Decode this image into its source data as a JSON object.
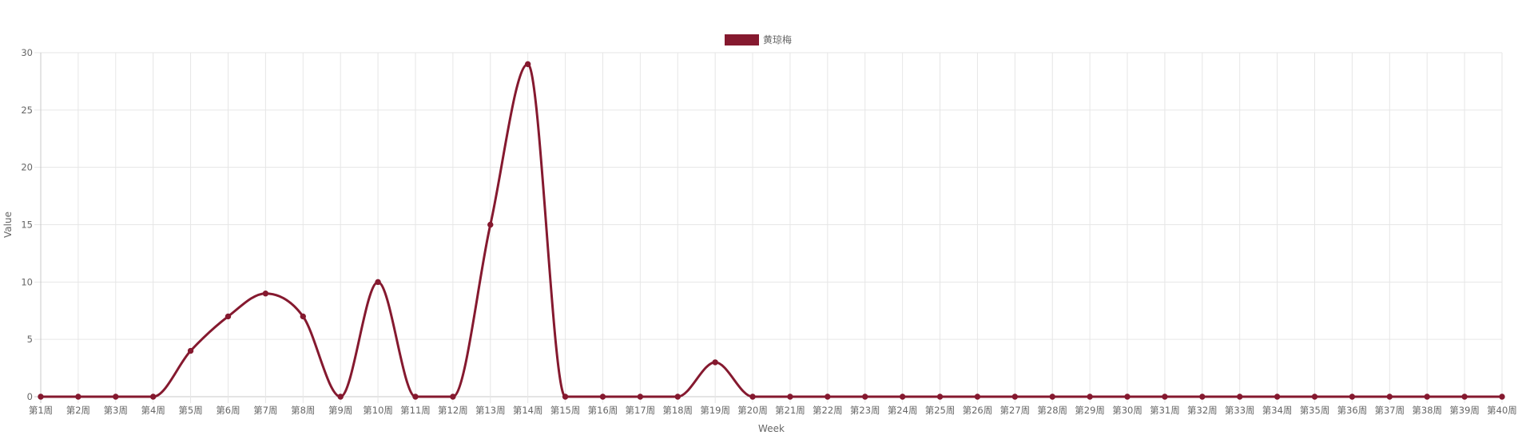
{
  "chart_data": {
    "type": "line",
    "categories": [
      "第1周",
      "第2周",
      "第3周",
      "第4周",
      "第5周",
      "第6周",
      "第7周",
      "第8周",
      "第9周",
      "第10周",
      "第11周",
      "第12周",
      "第13周",
      "第14周",
      "第15周",
      "第16周",
      "第17周",
      "第18周",
      "第19周",
      "第20周",
      "第21周",
      "第22周",
      "第23周",
      "第24周",
      "第25周",
      "第26周",
      "第27周",
      "第28周",
      "第29周",
      "第30周",
      "第31周",
      "第32周",
      "第33周",
      "第34周",
      "第35周",
      "第36周",
      "第37周",
      "第38周",
      "第39周",
      "第40周"
    ],
    "series": [
      {
        "name": "黄琼梅",
        "color": "#85192f",
        "values": [
          0,
          0,
          0,
          0,
          4,
          7,
          9,
          7,
          0,
          10,
          0,
          0,
          15,
          29,
          0,
          0,
          0,
          0,
          3,
          0,
          0,
          0,
          0,
          0,
          0,
          0,
          0,
          0,
          0,
          0,
          0,
          0,
          0,
          0,
          0,
          0,
          0,
          0,
          0,
          0
        ]
      }
    ],
    "xlabel": "Week",
    "ylabel": "Value",
    "ylim": [
      0,
      30
    ],
    "yticks": [
      0,
      5,
      10,
      15,
      20,
      25,
      30
    ],
    "grid": true,
    "legend_position": "top-center"
  }
}
